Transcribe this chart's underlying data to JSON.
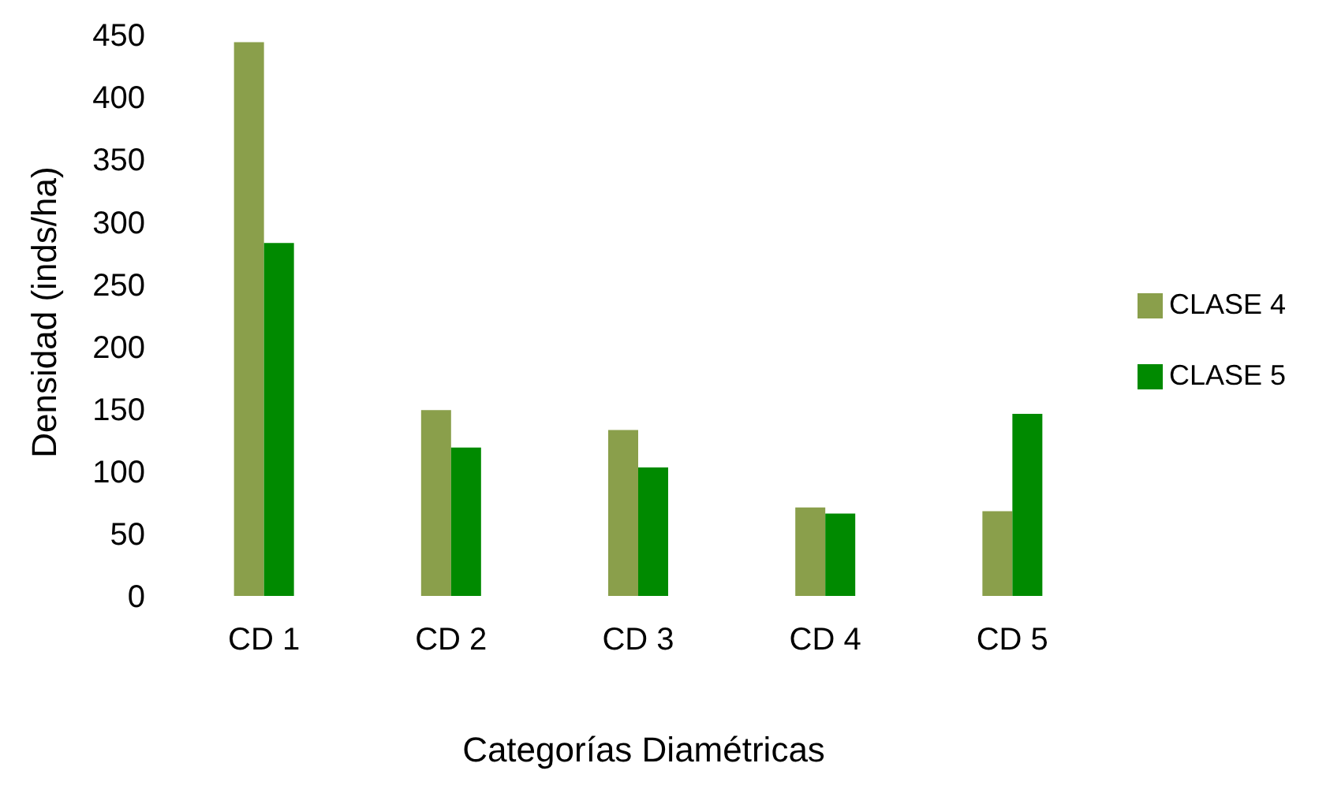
{
  "chart_data": {
    "type": "bar",
    "xlabel": "Categorías Diamétricas",
    "ylabel": "Densidad (inds/ha)",
    "categories": [
      "CD 1",
      "CD 2",
      "CD 3",
      "CD 4",
      "CD 5"
    ],
    "series": [
      {
        "name": "CLASE 4",
        "color": "#8a9f4b",
        "values": [
          444,
          149,
          133,
          71,
          68
        ]
      },
      {
        "name": "CLASE 5",
        "color": "#008a00",
        "values": [
          283,
          119,
          103,
          66,
          146
        ]
      }
    ],
    "ylim": [
      0,
      450
    ],
    "yticks": [
      0,
      50,
      100,
      150,
      200,
      250,
      300,
      350,
      400,
      450
    ],
    "grid": false,
    "legend": "right"
  }
}
